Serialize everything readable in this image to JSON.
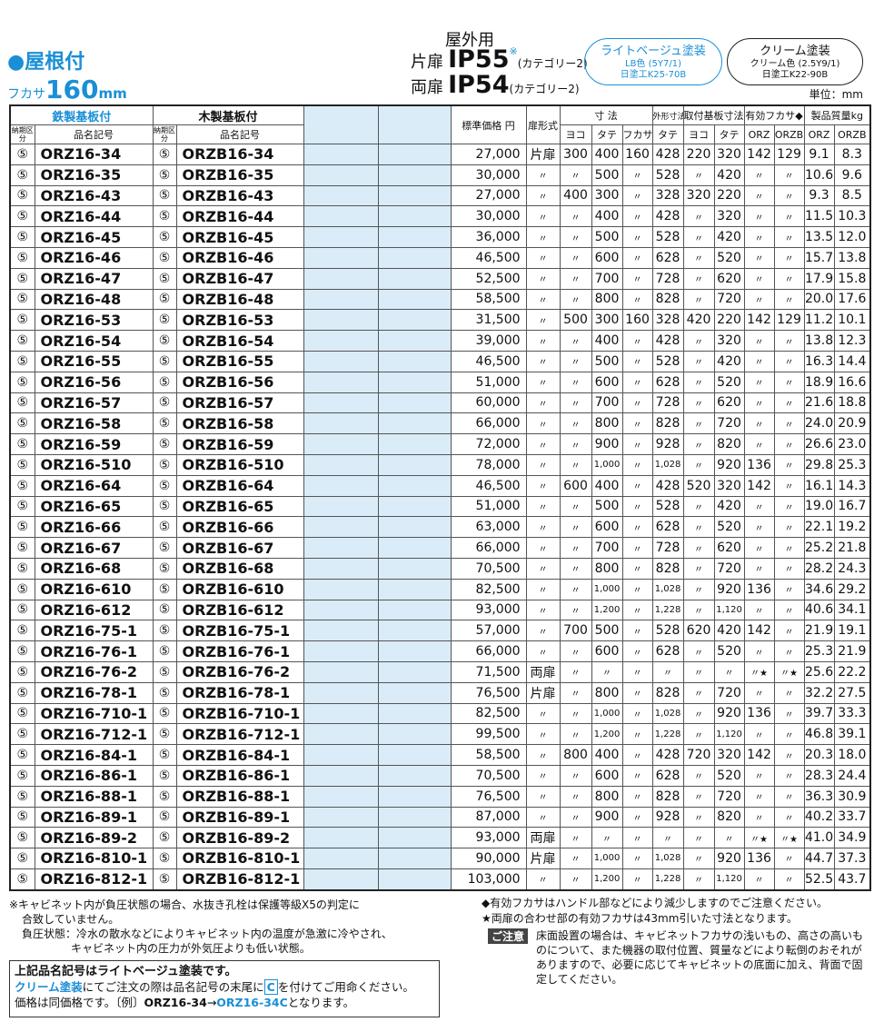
{
  "header": {
    "section": "●屋根付",
    "depth_label": "フカサ",
    "depth_value": "160",
    "depth_unit": "mm",
    "use": "屋外用",
    "single_door": "片扉",
    "ip55": "IP55",
    "ip55_note": "※",
    "category1": "(カテゴリー2)",
    "double_door": "両扉",
    "ip54": "IP54",
    "category2": "(カテゴリー2)",
    "badges": [
      {
        "title": "ライトベージュ塗装",
        "lines": [
          "LB色 (5Y7/1)",
          "日塗工K25-70B"
        ]
      },
      {
        "title": "クリーム塗装",
        "lines": [
          "クリーム色 (2.5Y9/1)",
          "日塗工K22-90B"
        ]
      }
    ],
    "unit": "単位：mm"
  },
  "table": {
    "header_top": [
      "鉄製基板付",
      "木製基板付",
      "標準価格 円",
      "扉形式",
      "寸 法",
      "外形寸法",
      "取付基板寸法",
      "有効フカサ◆",
      "製品質量kg"
    ],
    "header_sub": [
      "納期区分",
      "品名記号",
      "納期区分",
      "品名記号",
      "ヨコ",
      "タテ",
      "フカサ",
      "タテ",
      "ヨコ",
      "タテ",
      "ORZ",
      "ORZB",
      "ORZ",
      "ORZB"
    ],
    "rows": [
      [
        "⑤",
        "ORZ16-34",
        "⑤",
        "ORZB16-34",
        "27,000",
        "片扉",
        "300",
        "400",
        "160",
        "428",
        "220",
        "320",
        "142",
        "129",
        "9.1",
        "8.3"
      ],
      [
        "⑤",
        "ORZ16-35",
        "⑤",
        "ORZB16-35",
        "30,000",
        "〃",
        "〃",
        "500",
        "〃",
        "528",
        "〃",
        "420",
        "〃",
        "〃",
        "10.6",
        "9.6"
      ],
      [
        "⑤",
        "ORZ16-43",
        "⑤",
        "ORZB16-43",
        "27,000",
        "〃",
        "400",
        "300",
        "〃",
        "328",
        "320",
        "220",
        "〃",
        "〃",
        "9.3",
        "8.5"
      ],
      [
        "⑤",
        "ORZ16-44",
        "⑤",
        "ORZB16-44",
        "30,000",
        "〃",
        "〃",
        "400",
        "〃",
        "428",
        "〃",
        "320",
        "〃",
        "〃",
        "11.5",
        "10.3"
      ],
      [
        "⑤",
        "ORZ16-45",
        "⑤",
        "ORZB16-45",
        "36,000",
        "〃",
        "〃",
        "500",
        "〃",
        "528",
        "〃",
        "420",
        "〃",
        "〃",
        "13.5",
        "12.0"
      ],
      [
        "⑤",
        "ORZ16-46",
        "⑤",
        "ORZB16-46",
        "46,500",
        "〃",
        "〃",
        "600",
        "〃",
        "628",
        "〃",
        "520",
        "〃",
        "〃",
        "15.7",
        "13.8"
      ],
      [
        "⑤",
        "ORZ16-47",
        "⑤",
        "ORZB16-47",
        "52,500",
        "〃",
        "〃",
        "700",
        "〃",
        "728",
        "〃",
        "620",
        "〃",
        "〃",
        "17.9",
        "15.8"
      ],
      [
        "⑤",
        "ORZ16-48",
        "⑤",
        "ORZB16-48",
        "58,500",
        "〃",
        "〃",
        "800",
        "〃",
        "828",
        "〃",
        "720",
        "〃",
        "〃",
        "20.0",
        "17.6"
      ],
      [
        "⑤",
        "ORZ16-53",
        "⑤",
        "ORZB16-53",
        "31,500",
        "〃",
        "500",
        "300",
        "160",
        "328",
        "420",
        "220",
        "142",
        "129",
        "11.2",
        "10.1"
      ],
      [
        "⑤",
        "ORZ16-54",
        "⑤",
        "ORZB16-54",
        "39,000",
        "〃",
        "〃",
        "400",
        "〃",
        "428",
        "〃",
        "320",
        "〃",
        "〃",
        "13.8",
        "12.3"
      ],
      [
        "⑤",
        "ORZ16-55",
        "⑤",
        "ORZB16-55",
        "46,500",
        "〃",
        "〃",
        "500",
        "〃",
        "528",
        "〃",
        "420",
        "〃",
        "〃",
        "16.3",
        "14.4"
      ],
      [
        "⑤",
        "ORZ16-56",
        "⑤",
        "ORZB16-56",
        "51,000",
        "〃",
        "〃",
        "600",
        "〃",
        "628",
        "〃",
        "520",
        "〃",
        "〃",
        "18.9",
        "16.6"
      ],
      [
        "⑤",
        "ORZ16-57",
        "⑤",
        "ORZB16-57",
        "60,000",
        "〃",
        "〃",
        "700",
        "〃",
        "728",
        "〃",
        "620",
        "〃",
        "〃",
        "21.6",
        "18.8"
      ],
      [
        "⑤",
        "ORZ16-58",
        "⑤",
        "ORZB16-58",
        "66,000",
        "〃",
        "〃",
        "800",
        "〃",
        "828",
        "〃",
        "720",
        "〃",
        "〃",
        "24.0",
        "20.9"
      ],
      [
        "⑤",
        "ORZ16-59",
        "⑤",
        "ORZB16-59",
        "72,000",
        "〃",
        "〃",
        "900",
        "〃",
        "928",
        "〃",
        "820",
        "〃",
        "〃",
        "26.6",
        "23.0"
      ],
      [
        "⑤",
        "ORZ16-510",
        "⑤",
        "ORZB16-510",
        "78,000",
        "〃",
        "〃",
        "1,000",
        "〃",
        "1,028",
        "〃",
        "920",
        "136",
        "〃",
        "29.8",
        "25.3"
      ],
      [
        "⑤",
        "ORZ16-64",
        "⑤",
        "ORZB16-64",
        "46,500",
        "〃",
        "600",
        "400",
        "〃",
        "428",
        "520",
        "320",
        "142",
        "〃",
        "16.1",
        "14.3"
      ],
      [
        "⑤",
        "ORZ16-65",
        "⑤",
        "ORZB16-65",
        "51,000",
        "〃",
        "〃",
        "500",
        "〃",
        "528",
        "〃",
        "420",
        "〃",
        "〃",
        "19.0",
        "16.7"
      ],
      [
        "⑤",
        "ORZ16-66",
        "⑤",
        "ORZB16-66",
        "63,000",
        "〃",
        "〃",
        "600",
        "〃",
        "628",
        "〃",
        "520",
        "〃",
        "〃",
        "22.1",
        "19.2"
      ],
      [
        "⑤",
        "ORZ16-67",
        "⑤",
        "ORZB16-67",
        "66,000",
        "〃",
        "〃",
        "700",
        "〃",
        "728",
        "〃",
        "620",
        "〃",
        "〃",
        "25.2",
        "21.8"
      ],
      [
        "⑤",
        "ORZ16-68",
        "⑤",
        "ORZB16-68",
        "70,500",
        "〃",
        "〃",
        "800",
        "〃",
        "828",
        "〃",
        "720",
        "〃",
        "〃",
        "28.2",
        "24.3"
      ],
      [
        "⑤",
        "ORZ16-610",
        "⑤",
        "ORZB16-610",
        "82,500",
        "〃",
        "〃",
        "1,000",
        "〃",
        "1,028",
        "〃",
        "920",
        "136",
        "〃",
        "34.6",
        "29.2"
      ],
      [
        "⑤",
        "ORZ16-612",
        "⑤",
        "ORZB16-612",
        "93,000",
        "〃",
        "〃",
        "1,200",
        "〃",
        "1,228",
        "〃",
        "1,120",
        "〃",
        "〃",
        "40.6",
        "34.1"
      ],
      [
        "⑤",
        "ORZ16-75-1",
        "⑤",
        "ORZB16-75-1",
        "57,000",
        "〃",
        "700",
        "500",
        "〃",
        "528",
        "620",
        "420",
        "142",
        "〃",
        "21.9",
        "19.1"
      ],
      [
        "⑤",
        "ORZ16-76-1",
        "⑤",
        "ORZB16-76-1",
        "66,000",
        "〃",
        "〃",
        "600",
        "〃",
        "628",
        "〃",
        "520",
        "〃",
        "〃",
        "25.3",
        "21.9"
      ],
      [
        "⑤",
        "ORZ16-76-2",
        "⑤",
        "ORZB16-76-2",
        "71,500",
        "両扉",
        "〃",
        "〃",
        "〃",
        "〃",
        "〃",
        "〃",
        "〃★",
        "〃★",
        "25.6",
        "22.2"
      ],
      [
        "⑤",
        "ORZ16-78-1",
        "⑤",
        "ORZB16-78-1",
        "76,500",
        "片扉",
        "〃",
        "800",
        "〃",
        "828",
        "〃",
        "720",
        "〃",
        "〃",
        "32.2",
        "27.5"
      ],
      [
        "⑤",
        "ORZ16-710-1",
        "⑤",
        "ORZB16-710-1",
        "82,500",
        "〃",
        "〃",
        "1,000",
        "〃",
        "1,028",
        "〃",
        "920",
        "136",
        "〃",
        "39.7",
        "33.3"
      ],
      [
        "⑤",
        "ORZ16-712-1",
        "⑤",
        "ORZB16-712-1",
        "99,500",
        "〃",
        "〃",
        "1,200",
        "〃",
        "1,228",
        "〃",
        "1,120",
        "〃",
        "〃",
        "46.8",
        "39.1"
      ],
      [
        "⑤",
        "ORZ16-84-1",
        "⑤",
        "ORZB16-84-1",
        "58,500",
        "〃",
        "800",
        "400",
        "〃",
        "428",
        "720",
        "320",
        "142",
        "〃",
        "20.3",
        "18.0"
      ],
      [
        "⑤",
        "ORZ16-86-1",
        "⑤",
        "ORZB16-86-1",
        "70,500",
        "〃",
        "〃",
        "600",
        "〃",
        "628",
        "〃",
        "520",
        "〃",
        "〃",
        "28.3",
        "24.4"
      ],
      [
        "⑤",
        "ORZ16-88-1",
        "⑤",
        "ORZB16-88-1",
        "76,500",
        "〃",
        "〃",
        "800",
        "〃",
        "828",
        "〃",
        "720",
        "〃",
        "〃",
        "36.3",
        "30.9"
      ],
      [
        "⑤",
        "ORZ16-89-1",
        "⑤",
        "ORZB16-89-1",
        "87,000",
        "〃",
        "〃",
        "900",
        "〃",
        "928",
        "〃",
        "820",
        "〃",
        "〃",
        "40.2",
        "33.7"
      ],
      [
        "⑤",
        "ORZ16-89-2",
        "⑤",
        "ORZB16-89-2",
        "93,000",
        "両扉",
        "〃",
        "〃",
        "〃",
        "〃",
        "〃",
        "〃",
        "〃★",
        "〃★",
        "41.0",
        "34.9"
      ],
      [
        "⑤",
        "ORZ16-810-1",
        "⑤",
        "ORZB16-810-1",
        "90,000",
        "片扉",
        "〃",
        "1,000",
        "〃",
        "1,028",
        "〃",
        "920",
        "136",
        "〃",
        "44.7",
        "37.3"
      ],
      [
        "⑤",
        "ORZ16-812-1",
        "⑤",
        "ORZB16-812-1",
        "103,000",
        "〃",
        "〃",
        "1,200",
        "〃",
        "1,228",
        "〃",
        "1,120",
        "〃",
        "〃",
        "52.5",
        "43.7"
      ]
    ]
  },
  "notes": {
    "left": [
      "※キャビネット内が負圧状態の場合、水抜き孔栓は保護等級X5の判定に",
      "合致していません。",
      "負圧状態：冷水の散水などによりキャビネット内の温度が急激に冷やされ、",
      "キャビネット内の圧力が外気圧よりも低い状態。"
    ],
    "right": [
      "◆有効フカサはハンドル部などにより減少しますのでご注意ください。",
      "★両扉の合わせ部の有効フカサは43mm引いた寸法となります。"
    ],
    "caution_label": "ご注意",
    "caution_text": "床面設置の場合は、キャビネットフカサの浅いもの、高さの高いものについて、また機器の取付位置、質量などにより転倒のおそれがありますので、必要に応じてキャビネットの底面に加え、背面で固定してください。",
    "box": {
      "line1": "上記品名記号はライトベージュ塗装です。",
      "cream": "クリーム塗装",
      "line2a": "にてご注文の際は品名記号の末尾に",
      "c": "C",
      "line2b": "を付けてご用命ください。",
      "line3a": "価格は同価格です。〔例〕",
      "ex_from": "ORZ16-34",
      "arrow": "→",
      "ex_to": "ORZ16-34C",
      "line3b": "となります。"
    }
  }
}
